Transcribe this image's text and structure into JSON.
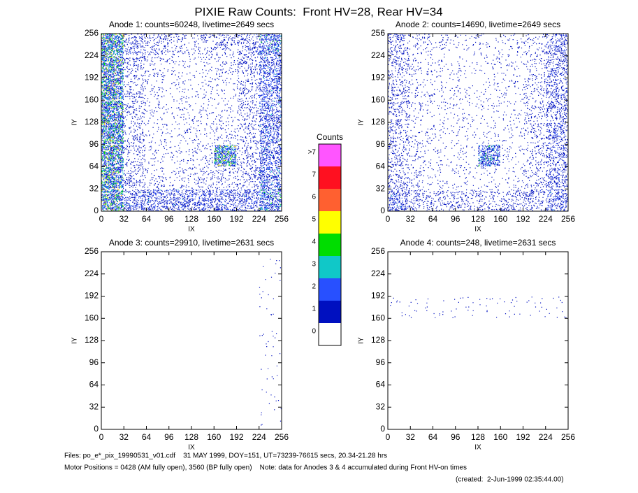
{
  "title": "PIXIE Raw Counts:  Front HV=28, Rear HV=34",
  "chart_data": [
    {
      "type": "heatmap",
      "title": "Anode 1: counts=60248, livetime=2649 secs",
      "xlabel": "IX",
      "ylabel": "IY",
      "xlim": [
        0,
        256
      ],
      "ylim": [
        0,
        256
      ],
      "xticks": [
        0,
        32,
        64,
        96,
        128,
        160,
        192,
        224,
        256
      ],
      "yticks": [
        0,
        32,
        64,
        96,
        128,
        160,
        192,
        224,
        256
      ],
      "z": [
        [
          1.5,
          0.6,
          0.6,
          0.6,
          0.6,
          0.6,
          0.6,
          1.0
        ],
        [
          1.5,
          0.3,
          0.15,
          0.15,
          0.2,
          0.2,
          0.3,
          0.8
        ],
        [
          1.5,
          0.25,
          0.1,
          0.1,
          0.15,
          1.5,
          0.25,
          0.7
        ],
        [
          1.5,
          0.25,
          0.1,
          0.1,
          0.1,
          0.15,
          0.25,
          0.7
        ],
        [
          1.5,
          0.25,
          0.1,
          0.1,
          0.1,
          0.1,
          0.25,
          0.7
        ],
        [
          1.5,
          0.25,
          0.1,
          0.1,
          0.1,
          0.1,
          0.25,
          0.7
        ],
        [
          1.5,
          0.3,
          0.15,
          0.1,
          0.1,
          0.15,
          0.3,
          0.7
        ],
        [
          1.5,
          0.4,
          0.3,
          0.2,
          0.2,
          0.3,
          0.4,
          0.9
        ]
      ]
    },
    {
      "type": "heatmap",
      "title": "Anode 2: counts=14690, livetime=2649 secs",
      "xlabel": "IX",
      "ylabel": "IY",
      "xlim": [
        0,
        256
      ],
      "ylim": [
        0,
        256
      ],
      "xticks": [
        0,
        32,
        64,
        96,
        128,
        160,
        192,
        224,
        256
      ],
      "yticks": [
        0,
        32,
        64,
        96,
        128,
        160,
        192,
        224,
        256
      ],
      "z": [
        [
          0.6,
          0.3,
          0.25,
          0.25,
          0.25,
          0.3,
          0.35,
          0.6
        ],
        [
          0.3,
          0.15,
          0.08,
          0.08,
          0.08,
          0.08,
          0.2,
          0.5
        ],
        [
          0.3,
          0.12,
          0.08,
          0.08,
          1.0,
          0.08,
          0.2,
          0.5
        ],
        [
          0.3,
          0.12,
          0.08,
          0.08,
          0.08,
          0.08,
          0.2,
          0.5
        ],
        [
          0.3,
          0.12,
          0.08,
          0.08,
          0.08,
          0.08,
          0.2,
          0.45
        ],
        [
          0.3,
          0.12,
          0.08,
          0.08,
          0.08,
          0.08,
          0.2,
          0.45
        ],
        [
          0.3,
          0.12,
          0.08,
          0.08,
          0.08,
          0.08,
          0.15,
          0.45
        ],
        [
          0.35,
          0.15,
          0.1,
          0.08,
          0.08,
          0.1,
          0.15,
          0.5
        ]
      ]
    },
    {
      "type": "heatmap",
      "title": "Anode 3: counts=29910, livetime=2631 secs",
      "xlabel": "IX",
      "ylabel": "IY",
      "xlim": [
        0,
        256
      ],
      "ylim": [
        0,
        256
      ],
      "xticks": [
        0,
        32,
        64,
        96,
        128,
        160,
        192,
        224,
        256
      ],
      "yticks": [
        0,
        32,
        64,
        96,
        128,
        160,
        192,
        224,
        256
      ],
      "z": [
        [
          0,
          0,
          0,
          0,
          0,
          0,
          0,
          0.02
        ],
        [
          0,
          0,
          0,
          0,
          0,
          0,
          0,
          0.02
        ],
        [
          0,
          0,
          0,
          0,
          0,
          0,
          0,
          0.02
        ],
        [
          0,
          0,
          0,
          0,
          0,
          0,
          0,
          0.02
        ],
        [
          0,
          0,
          0,
          0,
          0,
          0,
          0,
          0.02
        ],
        [
          0,
          0,
          0,
          0,
          0,
          0,
          0,
          0.02
        ],
        [
          0,
          0,
          0,
          0,
          0,
          0,
          0,
          0.02
        ],
        [
          0,
          0,
          0,
          0,
          0,
          0,
          0,
          0.02
        ]
      ]
    },
    {
      "type": "heatmap",
      "title": "Anode 4: counts=248, livetime=2631 secs",
      "xlabel": "IX",
      "ylabel": "IY",
      "xlim": [
        0,
        256
      ],
      "ylim": [
        0,
        256
      ],
      "xticks": [
        0,
        32,
        64,
        96,
        128,
        160,
        192,
        224,
        256
      ],
      "yticks": [
        0,
        32,
        64,
        96,
        128,
        160,
        192,
        224,
        256
      ],
      "z": [
        [
          0,
          0,
          0,
          0,
          0,
          0,
          0,
          0
        ],
        [
          0,
          0,
          0,
          0,
          0,
          0,
          0,
          0
        ],
        [
          0,
          0,
          0,
          0,
          0,
          0,
          0,
          0
        ],
        [
          0,
          0,
          0,
          0,
          0,
          0,
          0,
          0
        ],
        [
          0,
          0,
          0,
          0,
          0,
          0,
          0,
          0
        ],
        [
          0.03,
          0.03,
          0.03,
          0.03,
          0.03,
          0.03,
          0.03,
          0.03
        ],
        [
          0,
          0,
          0,
          0,
          0,
          0,
          0,
          0
        ],
        [
          0,
          0,
          0,
          0,
          0,
          0,
          0,
          0
        ]
      ]
    }
  ],
  "colorbar": {
    "title": "Counts",
    "ticks": [
      0,
      1,
      2,
      3,
      4,
      5,
      6,
      7,
      {
        "value": 8,
        "label": ">7"
      }
    ],
    "colors": [
      "#ffffff",
      "#0010c0",
      "#2850ff",
      "#10c8c8",
      "#00dd00",
      "#ffff00",
      "#ff6030",
      "#ff1020",
      "#ff55ff"
    ]
  },
  "footer": [
    "Files: po_e*_pix_19990531_v01.cdf    31 MAY 1999, DOY=151, UT=73239-76615 secs, 20.34-21.28 hrs",
    "Motor Positions = 0428 (AM fully open), 3560 (BP fully open)    Note: data for Anodes 3 & 4 accumulated during Front HV-on times",
    "(created:  2-Jun-1999 02:35:44.00)"
  ]
}
